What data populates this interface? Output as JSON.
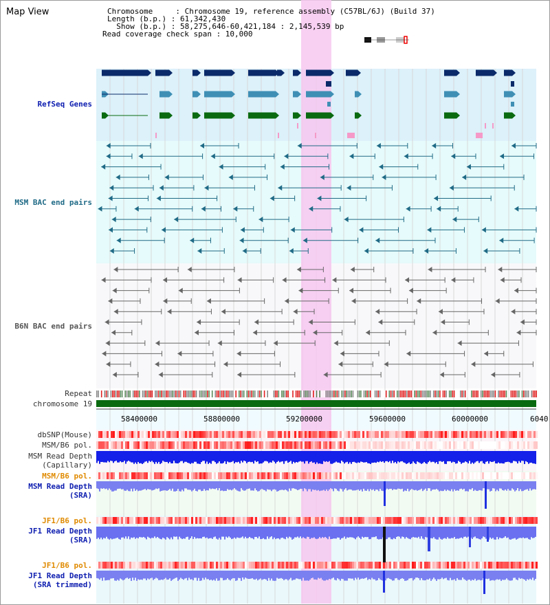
{
  "title": "Map View",
  "info": {
    "chromosome": "Chromosome     : Chromosome 19, reference assembly (C57BL/6J) (Build 37)",
    "length": "Length (b.p.) : 61,342,430",
    "show": "  Show (b.p.) : 58,275,646-60,421,184 : 2,145,539 bp",
    "span": "Read coverage check span : 10,000"
  },
  "tracks": {
    "refseq": "RefSeq Genes",
    "msm_bac": "MSM BAC end pairs",
    "b6n_bac": "B6N BAC end pairs",
    "repeat": "Repeat",
    "chromosome": "chromosome 19",
    "dbsnp": "dbSNP(Mouse)",
    "msm_b6_pol": "MSM/B6 pol.",
    "msm_read_depth_cap_1": "MSM Read Depth",
    "msm_read_depth_cap_2": "(Capillary)",
    "msm_b6_pol_2": "MSM/B6 pol.",
    "msm_read_depth_sra_1": "MSM Read Depth",
    "msm_read_depth_sra_2": "(SRA)",
    "jf1_b6_pol": "JF1/B6 pol.",
    "jf1_read_depth_1": "JF1 Read Depth",
    "jf1_read_depth_2": "(SRA)",
    "jf1_b6_pol_2": "JF1/B6 pol.",
    "jf1_trim_1": "JF1 Read Depth",
    "jf1_trim_2": "(SRA trimmed)"
  },
  "axis": {
    "ticks": [
      "58400000",
      "58800000",
      "59200000",
      "59600000",
      "60000000",
      "6040"
    ]
  },
  "colors": {
    "gene_navy": "#0a2a6a",
    "gene_steel": "#3f8fb5",
    "gene_green": "#0a6a10",
    "highlight": "#f7c8f0",
    "chrom_green": "#0a6a10"
  }
}
